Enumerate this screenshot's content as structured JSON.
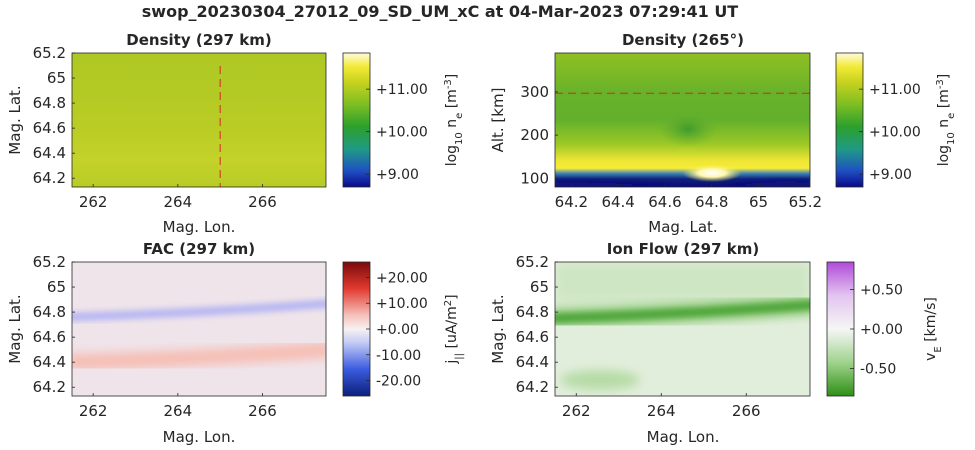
{
  "figure_title": "swop_20230304_27012_09_SD_UM_xC at 04-Mar-2023 07:29:41 UT",
  "chart_data": [
    {
      "id": "density-lat-lon",
      "type": "heatmap",
      "title": "Density (297 km)",
      "xlabel": "Mag. Lon.",
      "ylabel": "Mag. Lat.",
      "xlim": [
        261.5,
        267.5
      ],
      "ylim": [
        64.13,
        65.2
      ],
      "xticks": [
        "262",
        "264",
        "266"
      ],
      "yticks": [
        "64.2",
        "64.4",
        "64.6",
        "64.8",
        "65",
        "65.2"
      ],
      "marker_line": {
        "orientation": "vertical",
        "value": 265,
        "style": "dashed",
        "color": "#d62728"
      },
      "colormap": "viridis-like (dark blue → green → yellow)",
      "colorbar": {
        "ticks": [
          "+9.00",
          "+10.00",
          "+11.00"
        ],
        "tick_values": [
          9,
          10,
          11
        ],
        "range": [
          8.7,
          11.85
        ],
        "label_parts": [
          "log",
          "10",
          " n",
          "e",
          " [m",
          "-3",
          "]"
        ]
      },
      "field_description": "nearly uniform ~11.0 log10 ne",
      "value_level": 11.0
    },
    {
      "id": "density-alt-lat",
      "type": "heatmap",
      "title": "Density (265°)",
      "xlabel": "Mag. Lat.",
      "ylabel": "Alt. [km]",
      "xlim": [
        64.13,
        65.22
      ],
      "ylim": [
        80,
        390
      ],
      "xticks": [
        "64.2",
        "64.4",
        "64.6",
        "64.8",
        "65",
        "65.2"
      ],
      "yticks": [
        "100",
        "200",
        "300"
      ],
      "marker_line": {
        "orientation": "horizontal",
        "value": 297,
        "style": "dashed",
        "color": "#d62728"
      },
      "colorbar": {
        "ticks": [
          "+9.00",
          "+10.00",
          "+11.00"
        ],
        "tick_values": [
          9,
          10,
          11
        ],
        "range": [
          8.7,
          11.85
        ],
        "label_parts": [
          "log",
          "10",
          " n",
          "e",
          " [m",
          "-3",
          "]"
        ]
      },
      "field_description": "peak density at low altitude (~100 km) with maximum near 64.8 lat; dark band below ~90 km"
    },
    {
      "id": "fac-lat-lon",
      "type": "heatmap",
      "title": "FAC (297 km)",
      "xlabel": "Mag. Lon.",
      "ylabel": "Mag. Lat.",
      "xlim": [
        261.5,
        267.5
      ],
      "ylim": [
        64.13,
        65.2
      ],
      "xticks": [
        "262",
        "264",
        "266"
      ],
      "yticks": [
        "64.2",
        "64.4",
        "64.6",
        "64.8",
        "65",
        "65.2"
      ],
      "colormap": "diverging blue-white-red",
      "colorbar": {
        "ticks": [
          "+20.00",
          "+10.00",
          "+0.00",
          "-10.00",
          "-20.00"
        ],
        "tick_values": [
          20,
          10,
          0,
          -10,
          -20
        ],
        "range": [
          -26,
          26
        ],
        "label_parts": [
          "j",
          "||",
          " [uA/m",
          "2",
          "]"
        ]
      },
      "bands": [
        {
          "sign": "negative",
          "color": "blue",
          "lat_at_262": 64.76,
          "lat_at_267.5": 64.87
        },
        {
          "sign": "positive",
          "color": "red",
          "lat_at_262": 64.4,
          "lat_at_267.5": 64.5
        }
      ]
    },
    {
      "id": "ionflow-lat-lon",
      "type": "heatmap",
      "title": "Ion Flow (297 km)",
      "xlabel": "Mag. Lon.",
      "ylabel": "Mag. Lat.",
      "xlim": [
        261.5,
        267.5
      ],
      "ylim": [
        64.13,
        65.2
      ],
      "xticks": [
        "262",
        "264",
        "266"
      ],
      "yticks": [
        "64.2",
        "64.4",
        "64.6",
        "64.8",
        "65",
        "65.2"
      ],
      "colormap": "diverging green-white-purple",
      "colorbar": {
        "ticks": [
          "+0.50",
          "+0.00",
          "-0.50"
        ],
        "tick_values": [
          0.5,
          0,
          -0.5
        ],
        "range": [
          -0.85,
          0.85
        ],
        "label_parts": [
          "v",
          "E",
          " [km/s]"
        ]
      },
      "bands": [
        {
          "sign": "negative",
          "color": "green",
          "lat_at_262": 64.75,
          "lat_at_267.5": 64.86
        }
      ]
    }
  ]
}
